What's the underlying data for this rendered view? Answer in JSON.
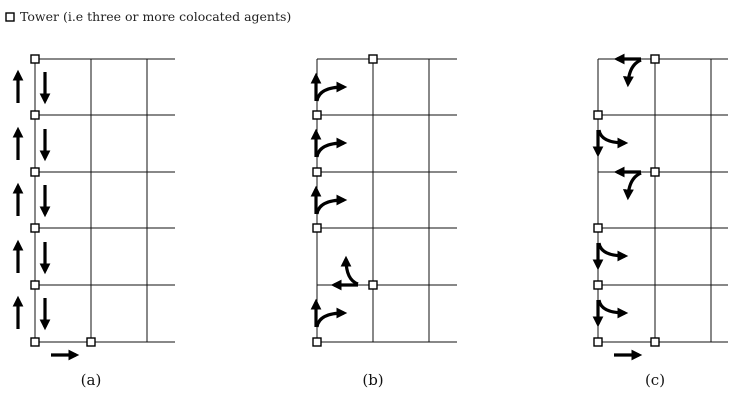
{
  "legend": {
    "label": "Tower (i.e three or more colocated agents)",
    "icon": "tower-square-icon"
  },
  "panels": [
    {
      "id": "a",
      "caption": "(a)"
    },
    {
      "id": "b",
      "caption": "(b)"
    },
    {
      "id": "c",
      "caption": "(c)"
    }
  ]
}
